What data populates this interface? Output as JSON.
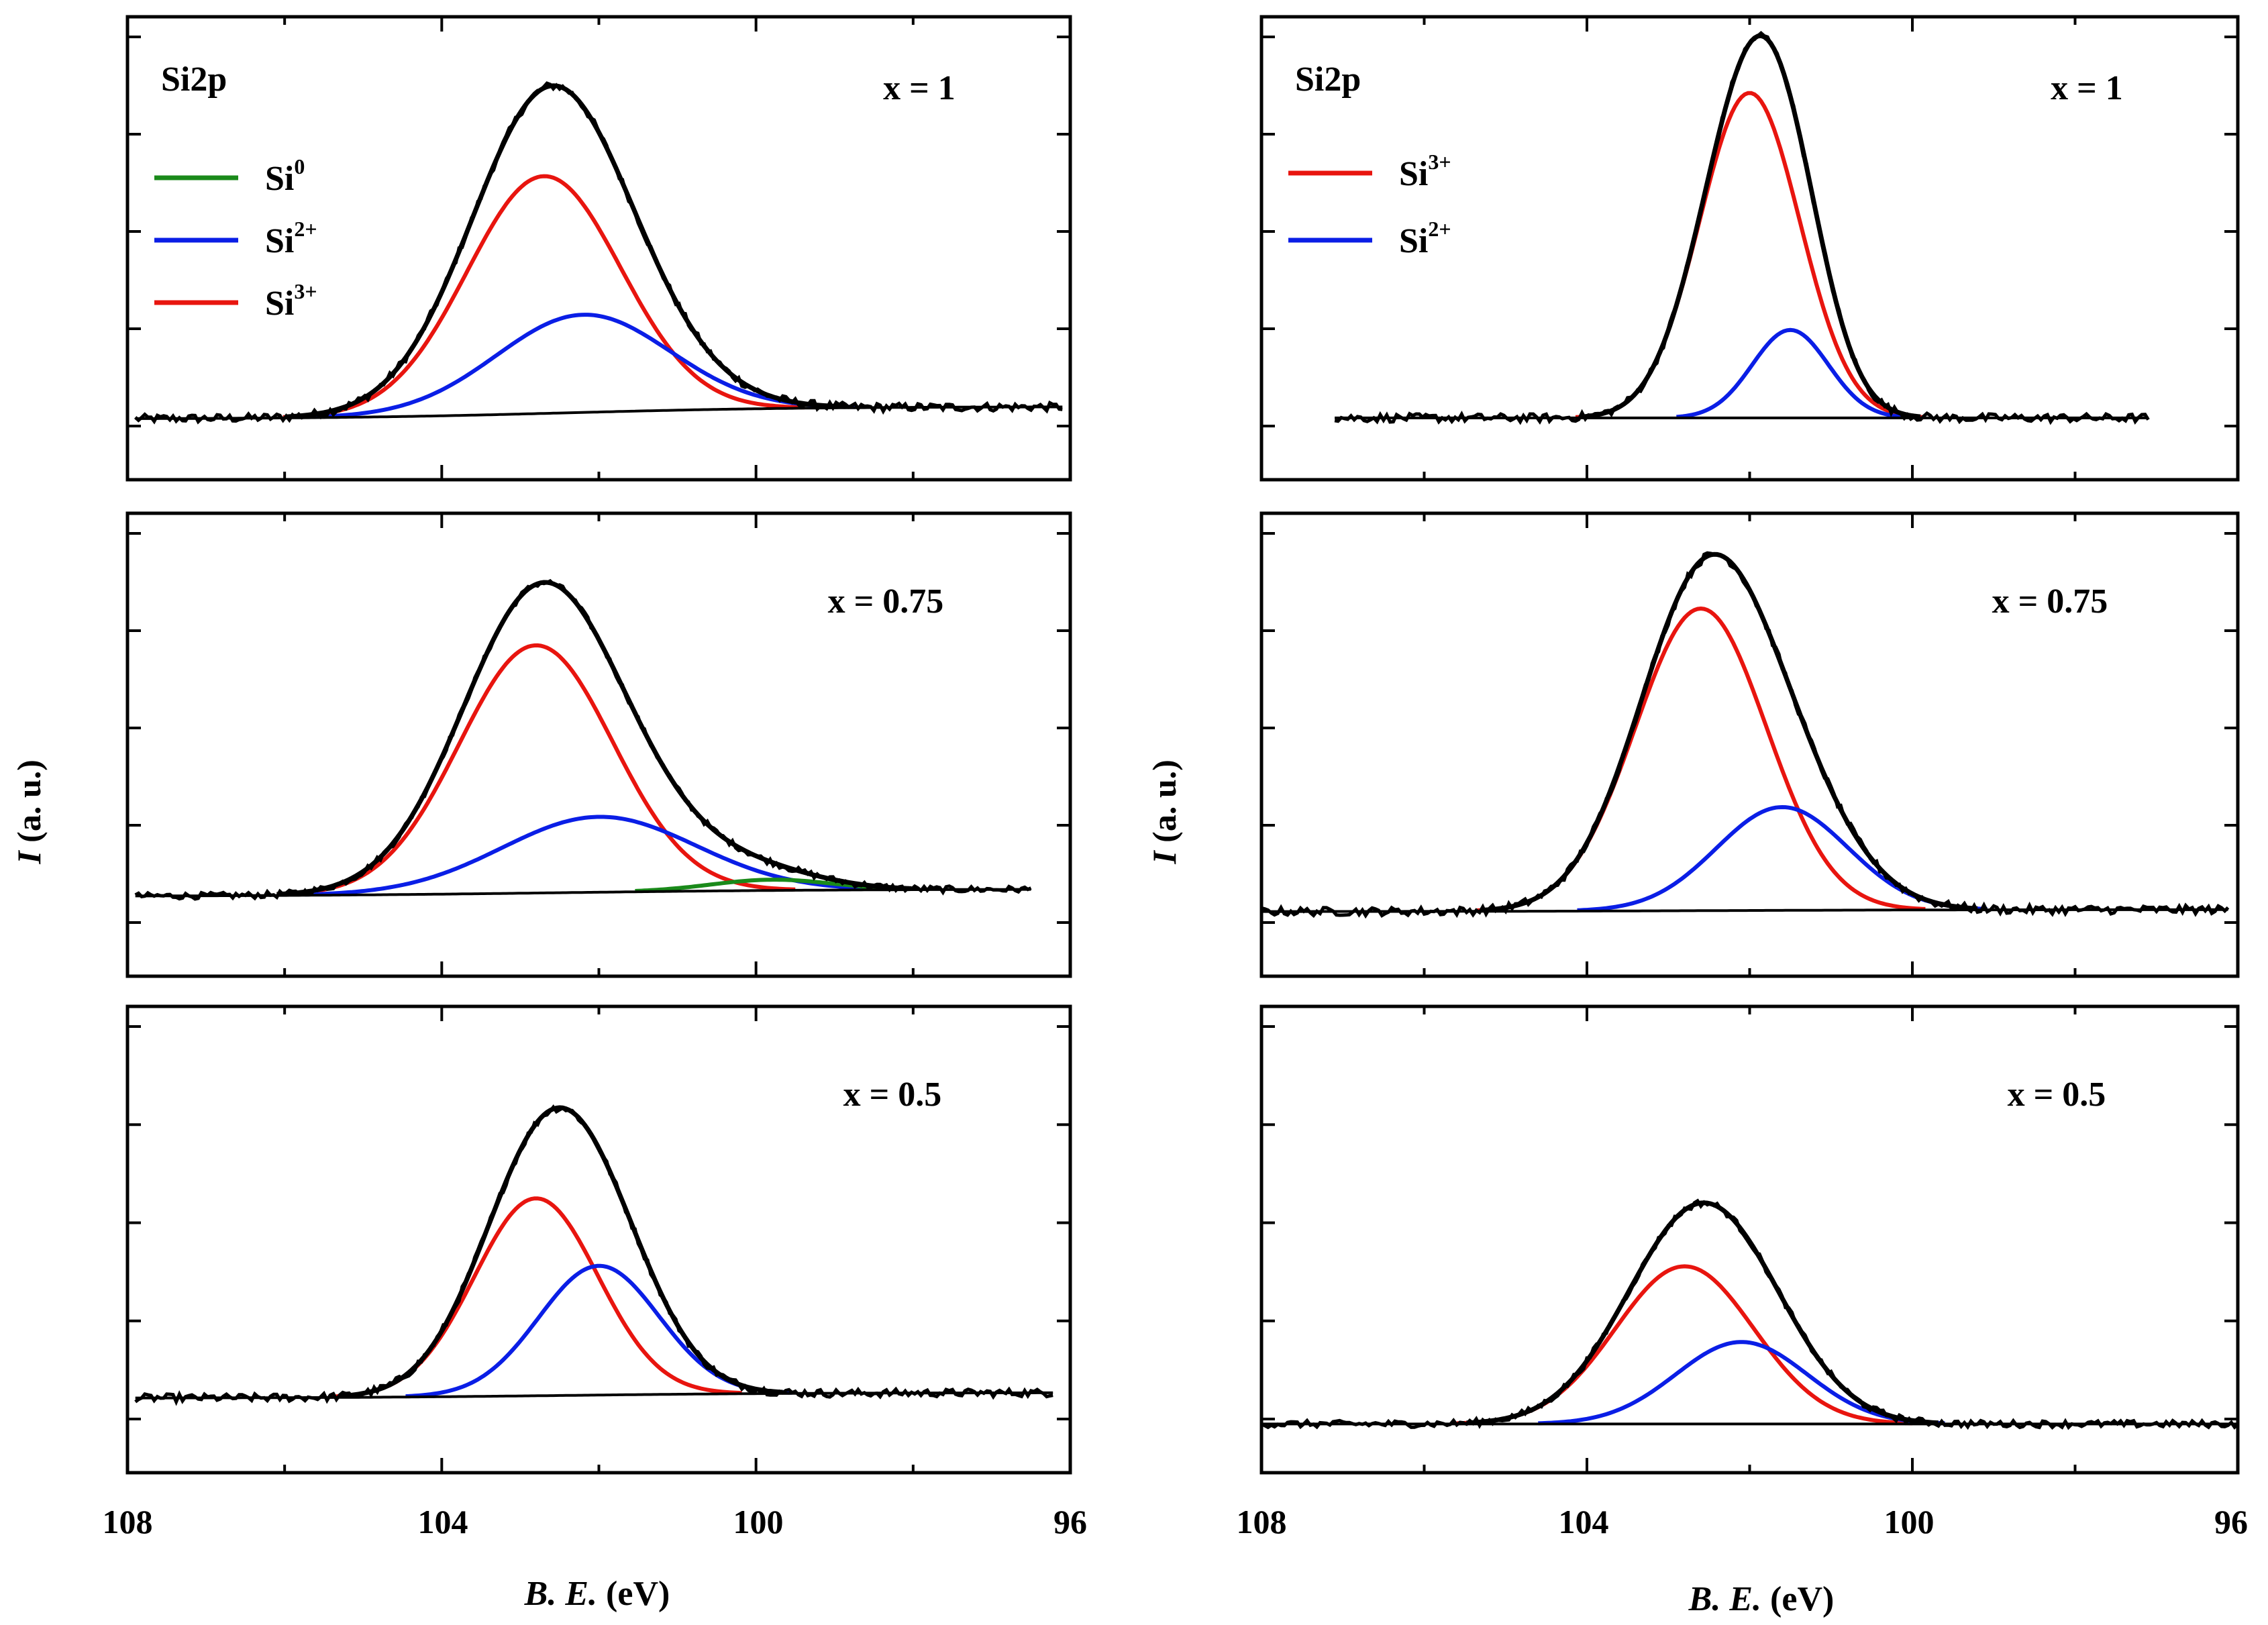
{
  "figure": {
    "y_axis_label_italic": "I",
    "y_axis_label_rest": " (a. u.)",
    "x_axis_label_italic": "B. E.",
    "x_axis_label_rest": " (eV)",
    "x_ticks": [
      "108",
      "104",
      "100",
      "96"
    ],
    "element_label": "Si2p"
  },
  "colors": {
    "envelope": "#000000",
    "raw": "#000000",
    "Si0": "#1a8a1a",
    "Si2+": "#0a1ee6",
    "Si3+": "#e8150f",
    "background": "#000000"
  },
  "legends": {
    "left": [
      {
        "base": "Si",
        "sup": "0",
        "color_key": "Si0"
      },
      {
        "base": "Si",
        "sup": "2+",
        "color_key": "Si2+"
      },
      {
        "base": "Si",
        "sup": "3+",
        "color_key": "Si3+"
      }
    ],
    "right": [
      {
        "base": "Si",
        "sup": "3+",
        "color_key": "Si3+"
      },
      {
        "base": "Si",
        "sup": "2+",
        "color_key": "Si2+"
      }
    ]
  },
  "chart_data": [
    {
      "type": "line",
      "column": "left",
      "row": 0,
      "panel_label": "x = 1",
      "xlim": [
        108,
        96
      ],
      "ylim": [
        0,
        1
      ],
      "data_range": [
        107.9,
        96.1
      ],
      "xlabel": "B. E. (eV)",
      "ylabel": "I (a. u.)",
      "background": {
        "low_be_level": 0.065,
        "high_be_level": 0.03,
        "center": 102.4,
        "width": 1.5
      },
      "components": [
        {
          "name": "Si3+",
          "center": 102.7,
          "amplitude": 0.68,
          "fwhm": 2.3
        },
        {
          "name": "Si2+",
          "center": 102.2,
          "amplitude": 0.28,
          "fwhm": 2.6
        }
      ],
      "noise": 0.012
    },
    {
      "type": "line",
      "column": "left",
      "row": 1,
      "panel_label": "x = 0.75",
      "xlim": [
        108,
        96
      ],
      "ylim": [
        0,
        1
      ],
      "data_range": [
        107.9,
        96.5
      ],
      "xlabel": "B. E. (eV)",
      "ylabel": "I (a. u.)",
      "background": {
        "low_be_level": 0.065,
        "high_be_level": 0.045,
        "center": 102.5,
        "width": 1.8
      },
      "components": [
        {
          "name": "Si3+",
          "center": 102.8,
          "amplitude": 0.69,
          "fwhm": 2.3
        },
        {
          "name": "Si2+",
          "center": 102.0,
          "amplitude": 0.21,
          "fwhm": 2.9
        },
        {
          "name": "Si0",
          "center": 99.8,
          "amplitude": 0.03,
          "fwhm": 1.8
        }
      ],
      "noise": 0.009
    },
    {
      "type": "line",
      "column": "left",
      "row": 2,
      "panel_label": "x = 0.5",
      "xlim": [
        108,
        96
      ],
      "ylim": [
        0,
        1
      ],
      "data_range": [
        107.9,
        96.2
      ],
      "xlabel": "B. E. (eV)",
      "ylabel": "I (a. u.)",
      "background": {
        "low_be_level": 0.12,
        "high_be_level": 0.105,
        "center": 102.4,
        "width": 1.5
      },
      "components": [
        {
          "name": "Si3+",
          "center": 102.8,
          "amplitude": 0.55,
          "fwhm": 1.85
        },
        {
          "name": "Si2+",
          "center": 102.0,
          "amplitude": 0.36,
          "fwhm": 1.8
        }
      ],
      "noise": 0.011
    },
    {
      "type": "line",
      "column": "right",
      "row": 0,
      "panel_label": "x = 1",
      "xlim": [
        108,
        96
      ],
      "ylim": [
        0,
        1
      ],
      "data_range": [
        107.1,
        97.1
      ],
      "xlabel": "B. E. (eV)",
      "ylabel": "I (a. u.)",
      "background": {
        "low_be_level": 0.03,
        "high_be_level": 0.03,
        "center": 102.2,
        "width": 1.2
      },
      "components": [
        {
          "name": "Si3+",
          "center": 102.0,
          "amplitude": 0.85,
          "fwhm": 1.45
        },
        {
          "name": "Si2+",
          "center": 101.5,
          "amplitude": 0.23,
          "fwhm": 1.1
        }
      ],
      "noise": 0.011
    },
    {
      "type": "line",
      "column": "right",
      "row": 1,
      "panel_label": "x = 0.75",
      "xlim": [
        108,
        96
      ],
      "ylim": [
        0,
        1
      ],
      "data_range": [
        108.0,
        96.1
      ],
      "xlabel": "B. E. (eV)",
      "ylabel": "I (a. u.)",
      "background": {
        "low_be_level": 0.06,
        "high_be_level": 0.055,
        "center": 102.4,
        "width": 1.5
      },
      "components": [
        {
          "name": "Si3+",
          "center": 102.6,
          "amplitude": 0.79,
          "fwhm": 1.9
        },
        {
          "name": "Si2+",
          "center": 101.6,
          "amplitude": 0.27,
          "fwhm": 1.9
        }
      ],
      "noise": 0.011
    },
    {
      "type": "line",
      "column": "right",
      "row": 2,
      "panel_label": "x = 0.5",
      "xlim": [
        108,
        96
      ],
      "ylim": [
        0,
        1
      ],
      "data_range": [
        108.0,
        96.0
      ],
      "xlabel": "B. E. (eV)",
      "ylabel": "I (a. u.)",
      "background": {
        "low_be_level": 0.08,
        "high_be_level": 0.08,
        "center": 102.4,
        "width": 1.5
      },
      "components": [
        {
          "name": "Si3+",
          "center": 102.8,
          "amplitude": 0.5,
          "fwhm": 2.0
        },
        {
          "name": "Si2+",
          "center": 102.1,
          "amplitude": 0.26,
          "fwhm": 1.9
        }
      ],
      "noise": 0.011
    }
  ]
}
